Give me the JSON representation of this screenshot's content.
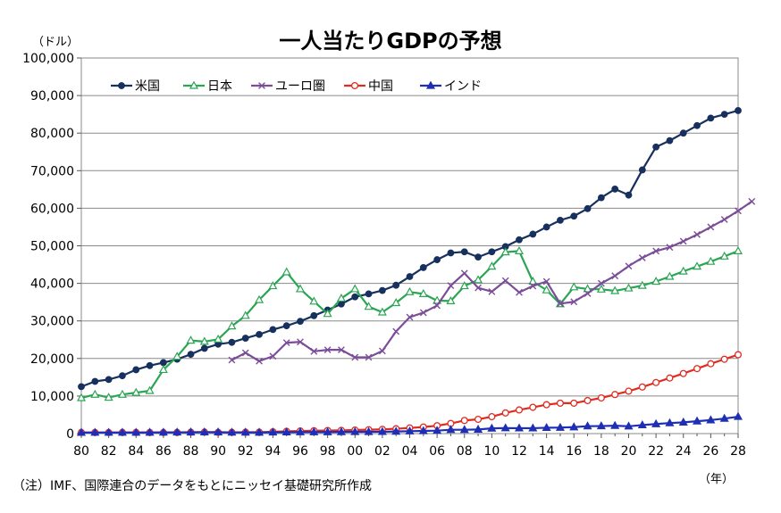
{
  "chart_data": {
    "type": "line",
    "title": "一人当たりGDPの予想",
    "ylabel": "（ドル）",
    "xunit": "（年）",
    "note": "（注）IMF、国際連合のデータをもとにニッセイ基礎研究所作成",
    "ylim": [
      0,
      100000
    ],
    "yticks": [
      0,
      10000,
      20000,
      30000,
      40000,
      50000,
      60000,
      70000,
      80000,
      90000,
      100000
    ],
    "ytick_labels": [
      "0",
      "10,000",
      "20,000",
      "30,000",
      "40,000",
      "50,000",
      "60,000",
      "70,000",
      "80,000",
      "90,000",
      "100,000"
    ],
    "xlim": [
      1980,
      2028
    ],
    "xticks": [
      1980,
      1982,
      1984,
      1986,
      1988,
      1990,
      1992,
      1994,
      1996,
      1998,
      2000,
      2002,
      2004,
      2006,
      2008,
      2010,
      2012,
      2014,
      2016,
      2018,
      2020,
      2022,
      2024,
      2026,
      2028
    ],
    "xtick_labels": [
      "80",
      "82",
      "84",
      "86",
      "88",
      "90",
      "92",
      "94",
      "96",
      "98",
      "00",
      "02",
      "04",
      "06",
      "08",
      "10",
      "12",
      "14",
      "16",
      "18",
      "20",
      "22",
      "24",
      "26",
      "28"
    ],
    "grid": true,
    "legend_position": "top-left",
    "series": [
      {
        "name": "米国",
        "color": "#17305e",
        "marker": "circle-filled",
        "x_start": 1980,
        "values": [
          12500,
          13900,
          14400,
          15400,
          17000,
          18100,
          18900,
          19800,
          21100,
          22700,
          23800,
          24300,
          25400,
          26400,
          27700,
          28700,
          29900,
          31400,
          32900,
          34500,
          36400,
          37200,
          38100,
          39500,
          41800,
          44200,
          46300,
          48100,
          48400,
          47000,
          48400,
          49800,
          51600,
          53100,
          55000,
          56800,
          57900,
          59900,
          62800,
          65100,
          63500,
          70200,
          76300,
          78000,
          80000,
          82000,
          84000,
          85000,
          86000
        ]
      },
      {
        "name": "日本",
        "color": "#2aa553",
        "marker": "triangle-open",
        "x_start": 1980,
        "values": [
          9500,
          10400,
          9600,
          10400,
          10900,
          11400,
          17000,
          20500,
          24800,
          24500,
          25100,
          28600,
          31400,
          35600,
          39300,
          43000,
          38500,
          35200,
          31900,
          36000,
          38500,
          33800,
          32300,
          34800,
          37700,
          37200,
          35400,
          35300,
          39300,
          40900,
          44500,
          48300,
          48600,
          40500,
          38200,
          34500,
          39000,
          38500,
          38400,
          38000,
          38700,
          39400,
          40500,
          41800,
          43200,
          44500,
          45800,
          47200,
          48600
        ]
      },
      {
        "name": "ユーロ圏",
        "color": "#7b4d99",
        "marker": "x",
        "x_start": 1991,
        "values": [
          19600,
          21500,
          19300,
          20600,
          24200,
          24400,
          21900,
          22300,
          22300,
          20300,
          20300,
          22000,
          27200,
          31000,
          32200,
          34100,
          39400,
          42700,
          38800,
          37800,
          40700,
          37600,
          39300,
          40500,
          34600,
          35100,
          37300,
          40000,
          42000,
          44600,
          46800,
          48600,
          49600,
          51200,
          53000,
          55000,
          57000,
          59300,
          61800
        ]
      },
      {
        "name": "中国",
        "color": "#e02b20",
        "marker": "circle-open",
        "x_start": 1980,
        "values": [
          310,
          290,
          280,
          300,
          300,
          290,
          280,
          300,
          360,
          400,
          320,
          330,
          360,
          370,
          470,
          600,
          700,
          770,
          820,
          860,
          950,
          1040,
          1130,
          1290,
          1500,
          1750,
          2100,
          2700,
          3500,
          3800,
          4500,
          5500,
          6300,
          7000,
          7700,
          8100,
          8100,
          8800,
          9500,
          10400,
          11300,
          12400,
          13600,
          14800,
          16000,
          17300,
          18600,
          19800,
          21000
        ]
      },
      {
        "name": "インド",
        "color": "#1f2fb5",
        "marker": "triangle-filled",
        "x_start": 1980,
        "values": [
          270,
          280,
          280,
          290,
          280,
          300,
          320,
          340,
          360,
          370,
          380,
          310,
          320,
          300,
          350,
          380,
          400,
          420,
          420,
          450,
          460,
          470,
          490,
          560,
          640,
          710,
          790,
          1030,
          1020,
          1100,
          1390,
          1470,
          1440,
          1440,
          1560,
          1600,
          1730,
          1980,
          2010,
          2100,
          1940,
          2270,
          2550,
          2800,
          3000,
          3300,
          3600,
          4000,
          4500
        ]
      }
    ]
  }
}
